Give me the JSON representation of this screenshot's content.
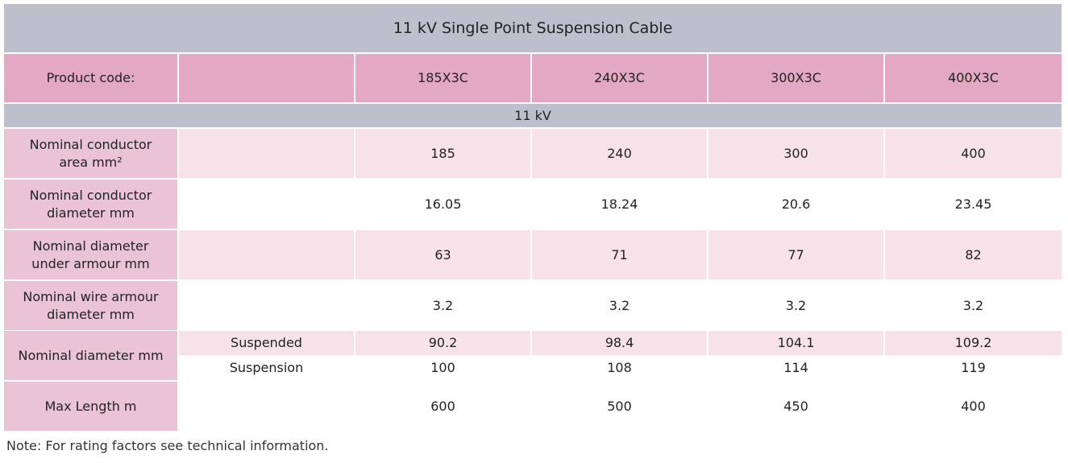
{
  "title": "11 kV Single Point Suspension Cable",
  "header": {
    "label": "Product code:",
    "codes": [
      "185X3C",
      "240X3C",
      "300X3C",
      "400X3C"
    ]
  },
  "section": "11 kV",
  "rows": [
    {
      "label": "Nominal conductor area mm²",
      "values": [
        185,
        240,
        300,
        400
      ]
    },
    {
      "label": "Nominal conductor diameter mm",
      "values": [
        16.05,
        18.24,
        20.6,
        23.45
      ]
    },
    {
      "label": "Nominal diameter under armour mm",
      "values": [
        63,
        71,
        77,
        82
      ]
    },
    {
      "label": "Nominal wire armour diameter mm",
      "values": [
        3.2,
        3.2,
        3.2,
        3.2
      ]
    },
    {
      "label": "Nominal diameter mm",
      "subrows": [
        {
          "label": "Suspended",
          "values": [
            90.2,
            98.4,
            104.1,
            109.2
          ]
        },
        {
          "label": "Suspension",
          "values": [
            100,
            108,
            114,
            119
          ]
        }
      ]
    },
    {
      "label": "Max Length m",
      "values": [
        600,
        500,
        450,
        400
      ]
    }
  ],
  "note": "Note: For rating factors see technical information."
}
